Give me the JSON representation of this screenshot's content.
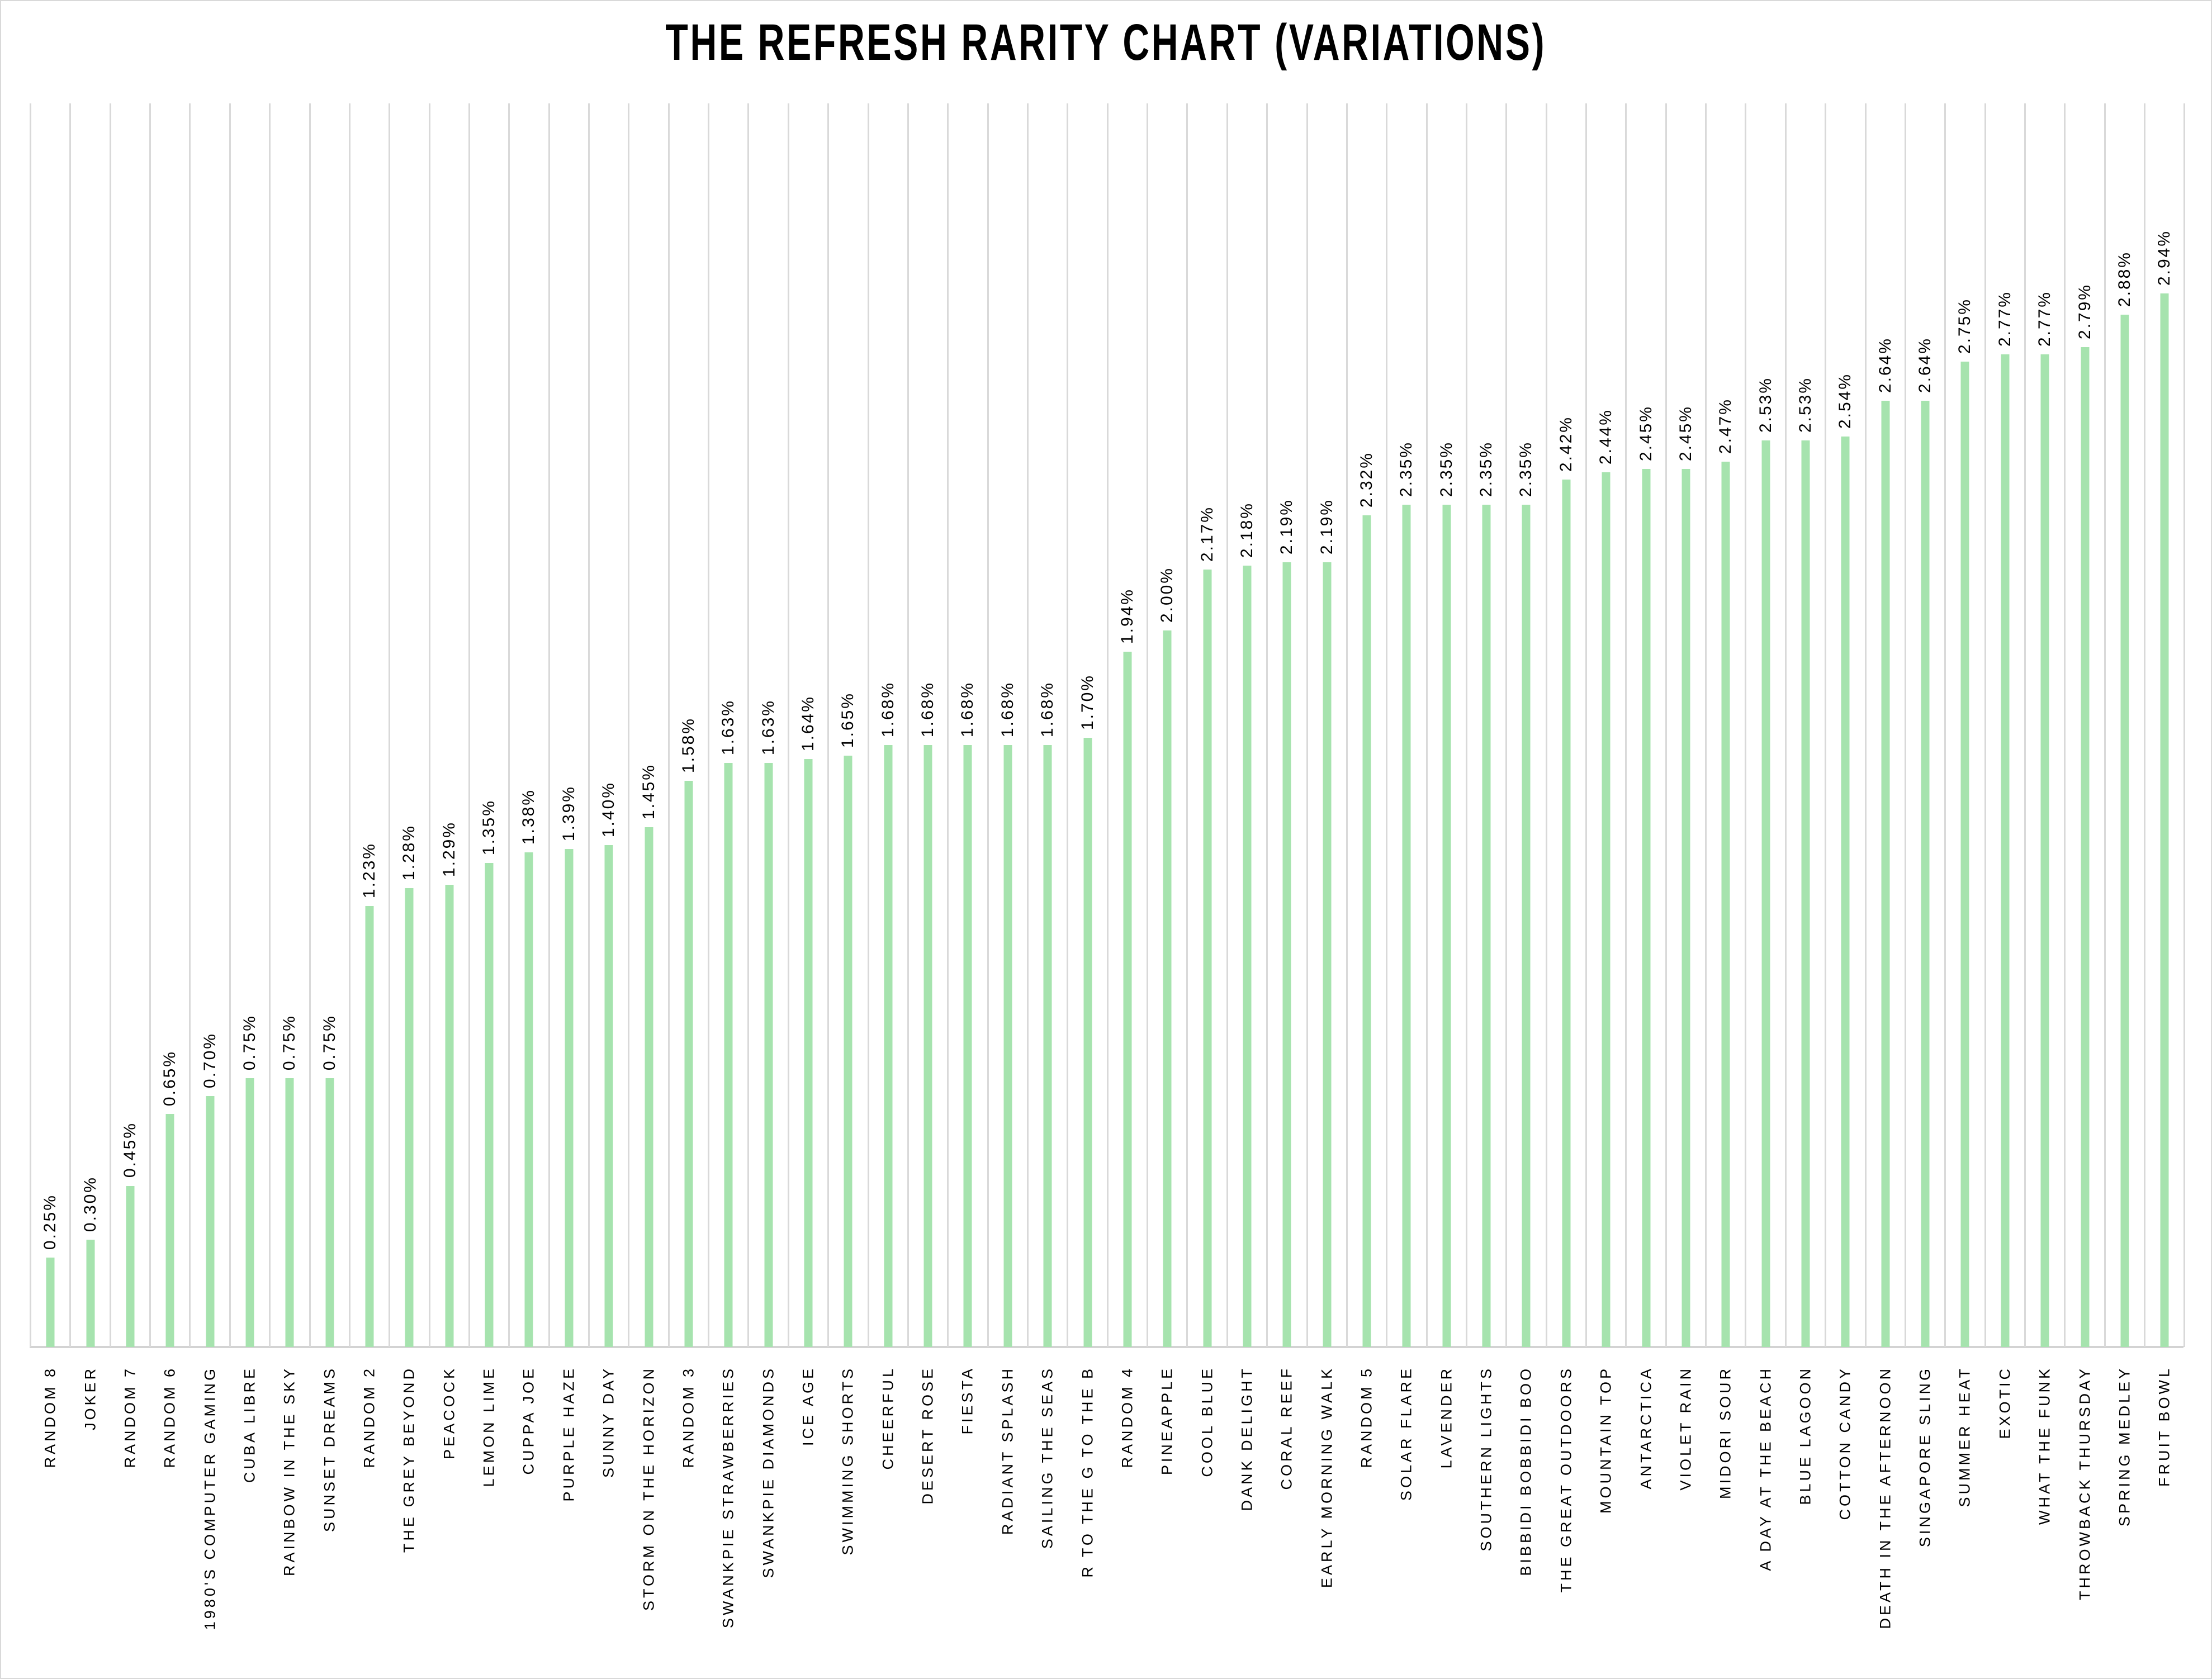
{
  "title": "THE REFRESH RARITY CHART (VARIATIONS)",
  "chart_data": {
    "type": "bar",
    "title": "THE REFRESH RARITY CHART (VARIATIONS)",
    "xlabel": "",
    "ylabel": "",
    "ylim": [
      0,
      3.47
    ],
    "grid": "vertical-gridlines-only",
    "legend": "none",
    "bar_color": "#a6e3ae",
    "gridline_color": "#d9d9d9",
    "axis_line_color": "#d3d3d3",
    "label_color": "#000000",
    "value_label_format": "percent-2dp-rotated-90",
    "category_label_style": "rotated-90-reading-bottom-to-top",
    "categories": [
      "RANDOM 8",
      "JOKER",
      "RANDOM 7",
      "RANDOM 6",
      "1980'S COMPUTER GAMING",
      "CUBA LIBRE",
      "RAINBOW IN THE SKY",
      "SUNSET DREAMS",
      "RANDOM 2",
      "THE GREY BEYOND",
      "PEACOCK",
      "LEMON LIME",
      "CUPPA JOE",
      "PURPLE HAZE",
      "SUNNY DAY",
      "STORM ON THE HORIZON",
      "RANDOM 3",
      "SWANKPIE STRAWBERRIES",
      "SWANKPIE DIAMONDS",
      "ICE AGE",
      "SWIMMING SHORTS",
      "CHEERFUL",
      "DESERT ROSE",
      "FIESTA",
      "RADIANT SPLASH",
      "SAILING THE SEAS",
      "R TO THE G TO THE B",
      "RANDOM 4",
      "PINEAPPLE",
      "COOL BLUE",
      "DANK DELIGHT",
      "CORAL REEF",
      "EARLY MORNING WALK",
      "RANDOM 5",
      "SOLAR FLARE",
      "LAVENDER",
      "SOUTHERN LIGHTS",
      "BIBBIDI BOBBIDI BOO",
      "THE GREAT OUTDOORS",
      "MOUNTAIN TOP",
      "ANTARCTICA",
      "VIOLET RAIN",
      "MIDORI SOUR",
      "A DAY AT THE BEACH",
      "BLUE LAGOON",
      "COTTON CANDY",
      "DEATH IN THE AFTERNOON",
      "SINGAPORE SLING",
      "SUMMER HEAT",
      "EXOTIC",
      "WHAT THE FUNK",
      "THROWBACK THURSDAY",
      "SPRING MEDLEY",
      "FRUIT BOWL"
    ],
    "values": [
      0.25,
      0.3,
      0.45,
      0.65,
      0.7,
      0.75,
      0.75,
      0.75,
      1.23,
      1.28,
      1.29,
      1.35,
      1.38,
      1.39,
      1.4,
      1.45,
      1.58,
      1.63,
      1.63,
      1.64,
      1.65,
      1.68,
      1.68,
      1.68,
      1.68,
      1.68,
      1.7,
      1.94,
      2.0,
      2.17,
      2.18,
      2.19,
      2.19,
      2.32,
      2.35,
      2.35,
      2.35,
      2.35,
      2.42,
      2.44,
      2.45,
      2.45,
      2.47,
      2.53,
      2.53,
      2.54,
      2.64,
      2.64,
      2.75,
      2.77,
      2.77,
      2.79,
      2.88,
      2.94
    ]
  }
}
